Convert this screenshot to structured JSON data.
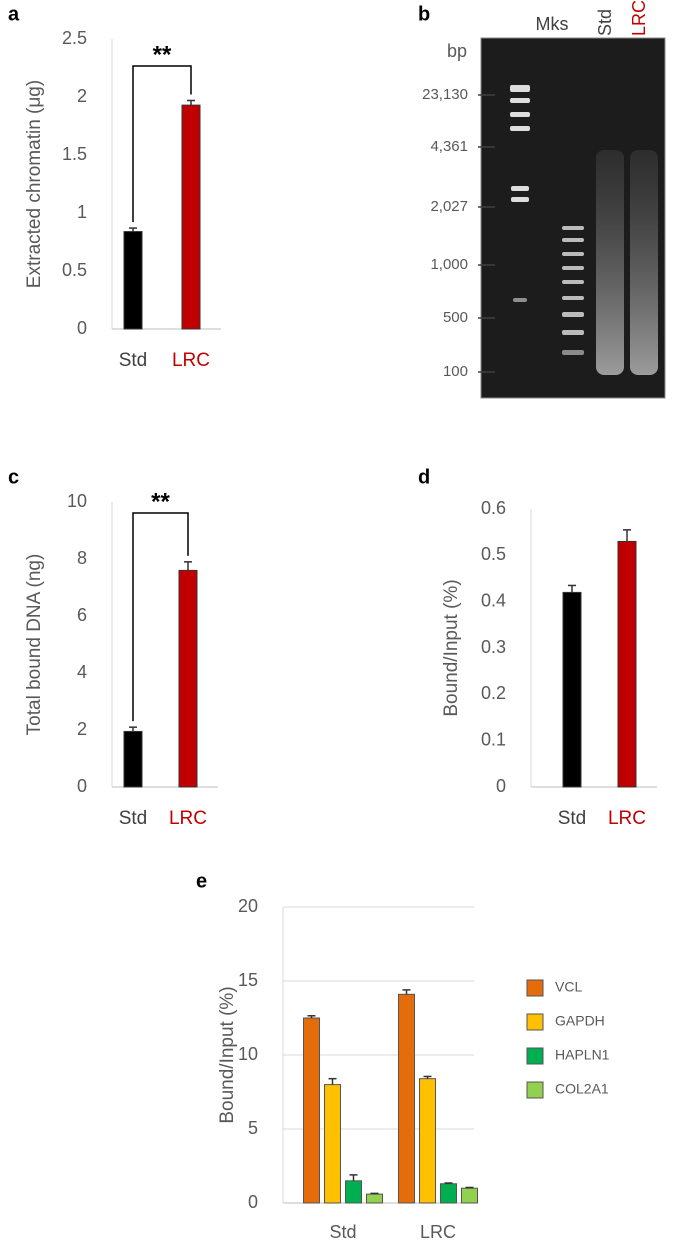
{
  "chart_data": [
    {
      "type": "bar",
      "panel": "a",
      "y_label": "Extracted chromatin (μg)",
      "categories": [
        "Std",
        "LRC"
      ],
      "category_label_colors": [
        "#404040",
        "#c00000"
      ],
      "values": [
        0.84,
        1.93
      ],
      "errors": [
        0.03,
        0.04
      ],
      "colors": [
        "#000000",
        "#c00000"
      ],
      "ylim": [
        0,
        2.5
      ],
      "yticks": [
        0,
        0.5,
        1,
        1.5,
        2,
        2.5
      ],
      "significance": "**"
    },
    {
      "type": "gel",
      "panel": "b",
      "unit": "bp",
      "lanes": [
        "Mks",
        "Std",
        "LRC"
      ],
      "lane_colors": [
        "#404040",
        "#404040",
        "#c00000"
      ],
      "markers": [
        {
          "value": 23130,
          "label": "23,130"
        },
        {
          "value": 4361,
          "label": "4,361"
        },
        {
          "value": 2027,
          "label": "2,027"
        },
        {
          "value": 1000,
          "label": "1,000"
        },
        500,
        100
      ]
    },
    {
      "type": "bar",
      "panel": "c",
      "y_label": "Total bound DNA (ng)",
      "categories": [
        "Std",
        "LRC"
      ],
      "category_label_colors": [
        "#404040",
        "#c00000"
      ],
      "values": [
        1.95,
        7.6
      ],
      "errors": [
        0.15,
        0.3
      ],
      "colors": [
        "#000000",
        "#c00000"
      ],
      "ylim": [
        0,
        10
      ],
      "yticks": [
        0,
        2,
        4,
        6,
        8,
        10
      ],
      "significance": "**"
    },
    {
      "type": "bar",
      "panel": "d",
      "y_label": "Bound/Input (%)",
      "categories": [
        "Std",
        "LRC"
      ],
      "category_label_colors": [
        "#404040",
        "#c00000"
      ],
      "values": [
        0.42,
        0.53
      ],
      "errors": [
        0.015,
        0.025
      ],
      "colors": [
        "#000000",
        "#c00000"
      ],
      "ylim": [
        0,
        0.6
      ],
      "yticks": [
        0,
        0.1,
        0.2,
        0.3,
        0.4,
        0.5,
        0.6
      ]
    },
    {
      "type": "grouped_bar",
      "panel": "e",
      "y_label": "Bound/Input (%)",
      "categories": [
        "Std",
        "LRC"
      ],
      "ylim": [
        0,
        20
      ],
      "yticks": [
        0,
        5,
        10,
        15,
        20
      ],
      "grid": true,
      "series": [
        {
          "name": "VCL",
          "color": "#e46c0a",
          "values": [
            12.5,
            14.1
          ],
          "errors": [
            0.15,
            0.3
          ]
        },
        {
          "name": "GAPDH",
          "color": "#ffc000",
          "values": [
            8.0,
            8.4
          ],
          "errors": [
            0.4,
            0.15
          ]
        },
        {
          "name": "HAPLN1",
          "color": "#00b050",
          "values": [
            1.5,
            1.3
          ],
          "errors": [
            0.4,
            0.05
          ]
        },
        {
          "name": "COL2A1",
          "color": "#92d050",
          "values": [
            0.6,
            1.0
          ],
          "errors": [
            0.05,
            0.05
          ]
        }
      ],
      "legend": "right"
    }
  ]
}
